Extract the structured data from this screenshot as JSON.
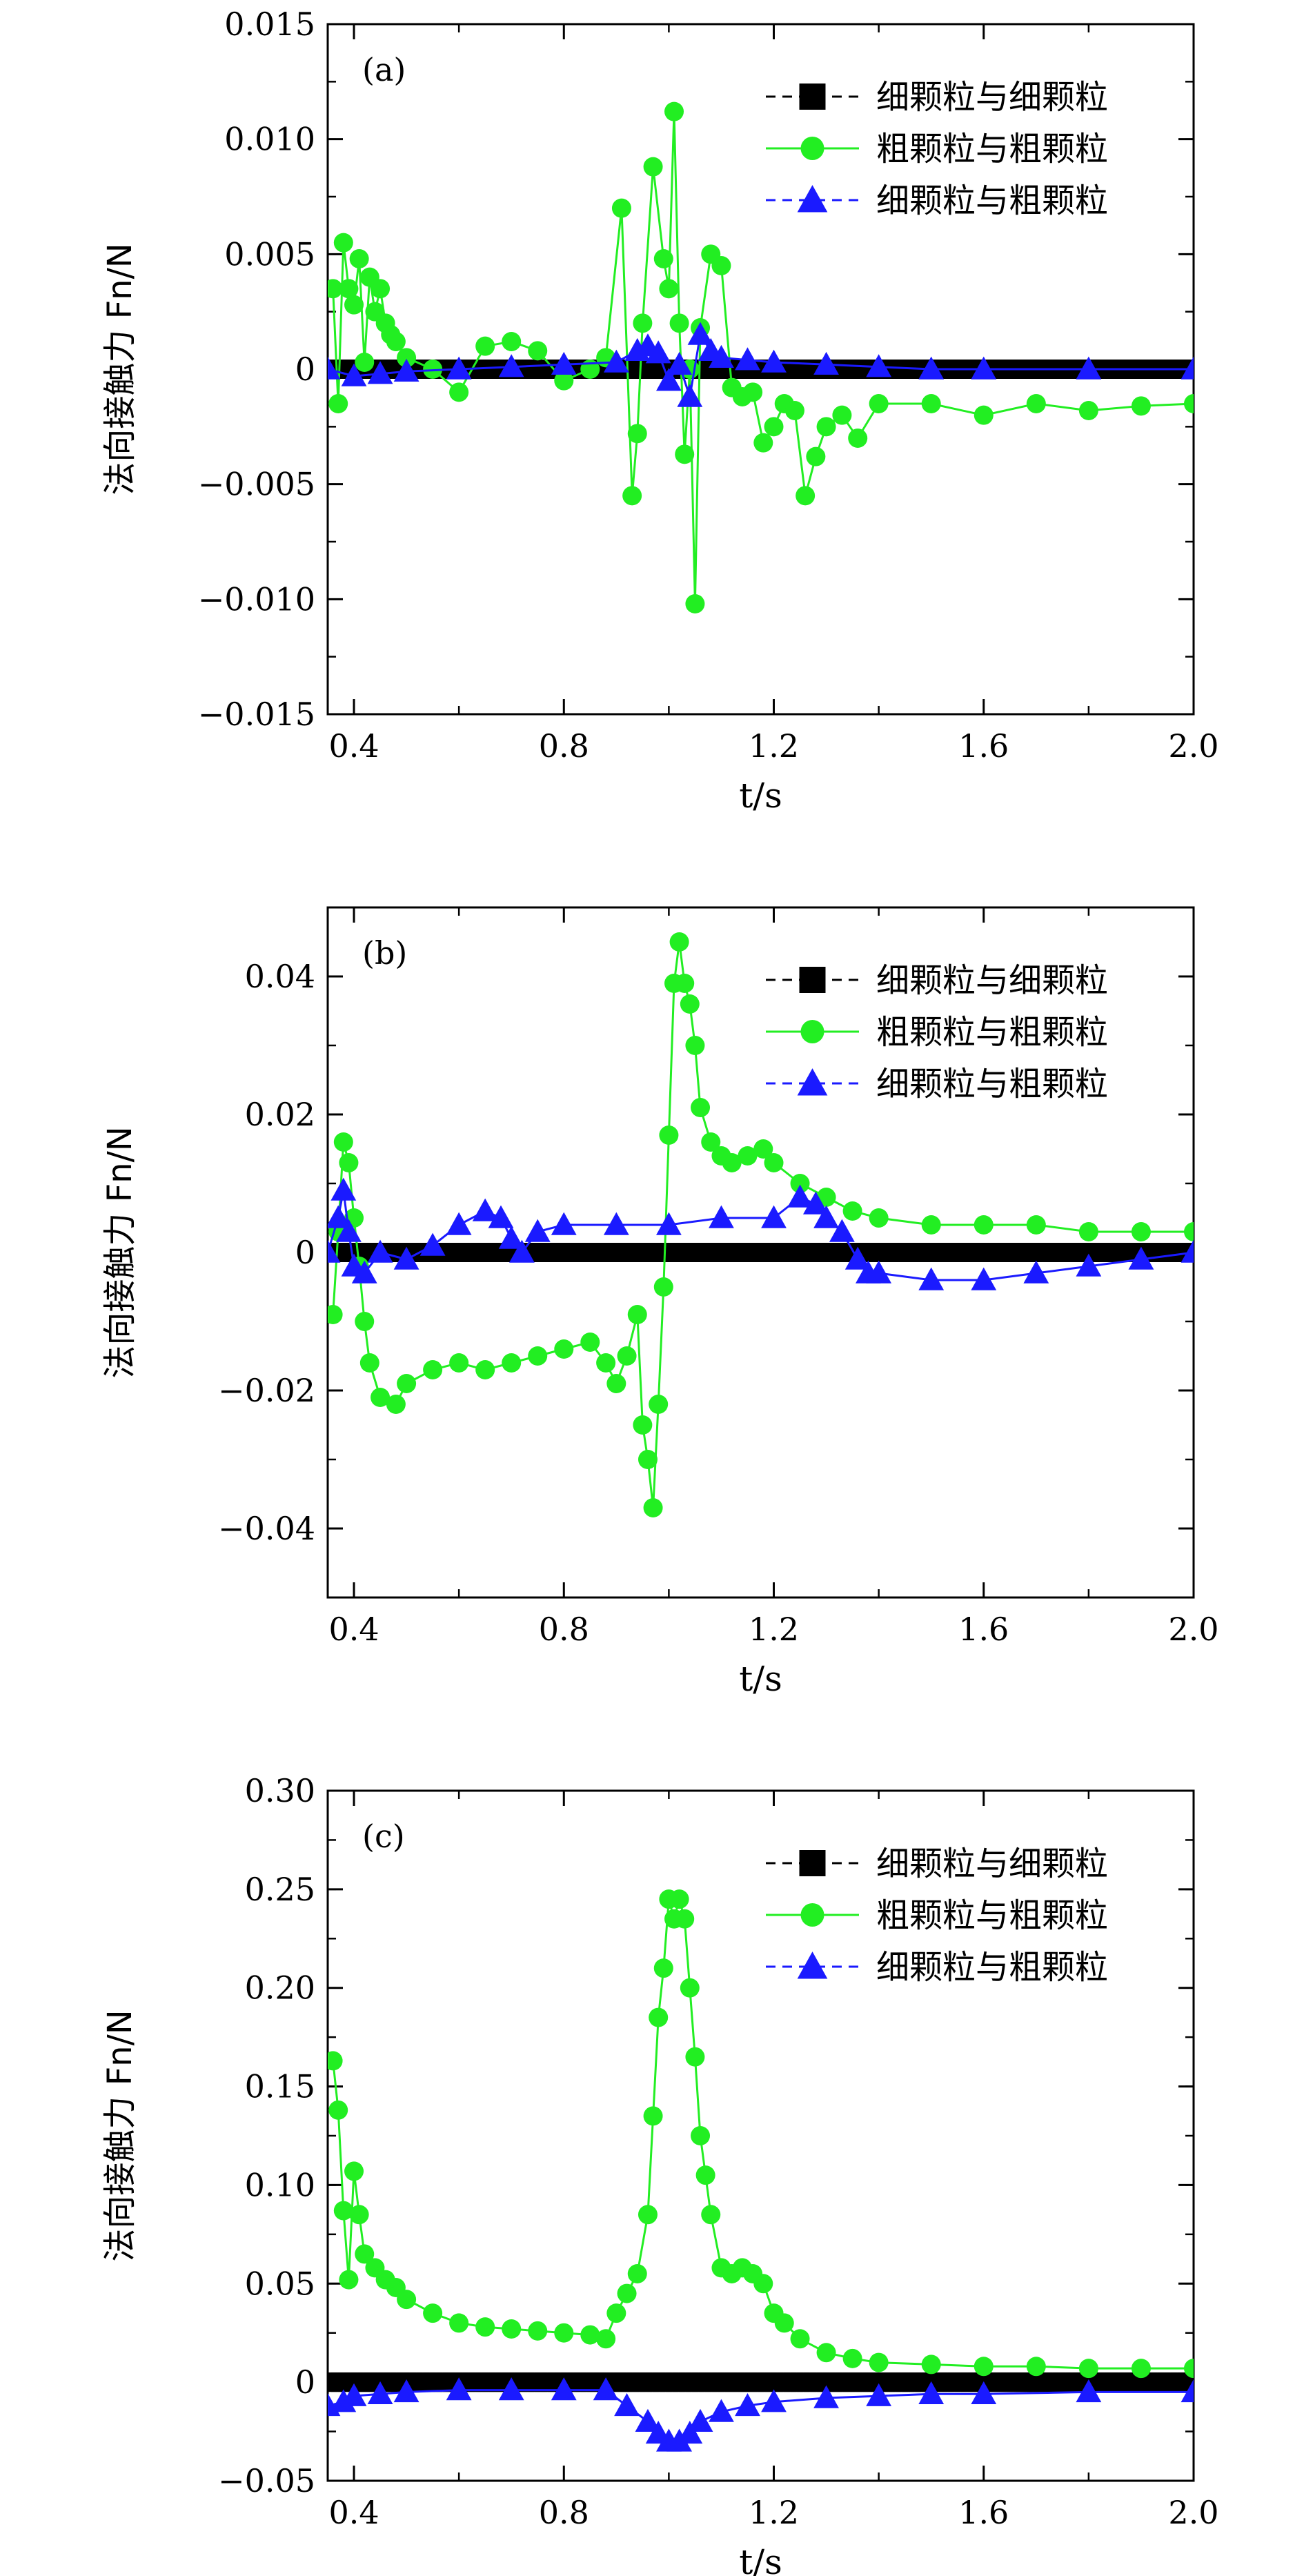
{
  "chart_data": [
    {
      "type": "line",
      "panel_label": "(a)",
      "xlabel": "t/s",
      "ylabel": "法向接触力 Fn/N",
      "xlim": [
        0.35,
        2.0
      ],
      "ylim": [
        -0.015,
        0.015
      ],
      "xticks": [
        0.4,
        0.8,
        1.2,
        1.6,
        2.0
      ],
      "xtick_labels": [
        "0.4",
        "0.8",
        "1.2",
        "1.6",
        "2.0"
      ],
      "yticks": [
        -0.015,
        -0.01,
        -0.005,
        0,
        0.005,
        0.01,
        0.015
      ],
      "ytick_labels": [
        "−0.015",
        "−0.010",
        "−0.005",
        "0",
        "0.005",
        "0.010",
        "0.015"
      ],
      "legend_position": "top-right",
      "series": [
        {
          "name": "细颗粒与细颗粒",
          "color": "#000000",
          "marker": "square",
          "x": [
            0.35,
            0.5,
            0.7,
            0.9,
            1.1,
            1.3,
            1.5,
            1.7,
            2.0
          ],
          "y": [
            0,
            0,
            0,
            0,
            0,
            0,
            0,
            0,
            0
          ]
        },
        {
          "name": "粗颗粒与粗颗粒",
          "color": "#22ee22",
          "marker": "circle",
          "x": [
            0.36,
            0.37,
            0.38,
            0.39,
            0.4,
            0.41,
            0.42,
            0.43,
            0.44,
            0.45,
            0.46,
            0.47,
            0.48,
            0.5,
            0.55,
            0.6,
            0.65,
            0.7,
            0.75,
            0.8,
            0.85,
            0.88,
            0.91,
            0.93,
            0.94,
            0.95,
            0.97,
            0.99,
            1.0,
            1.01,
            1.02,
            1.03,
            1.04,
            1.05,
            1.06,
            1.08,
            1.1,
            1.12,
            1.14,
            1.16,
            1.18,
            1.2,
            1.22,
            1.24,
            1.26,
            1.28,
            1.3,
            1.33,
            1.36,
            1.4,
            1.5,
            1.6,
            1.7,
            1.8,
            1.9,
            2.0
          ],
          "y": [
            0.0035,
            -0.0015,
            0.0055,
            0.0035,
            0.0028,
            0.0048,
            0.0003,
            0.004,
            0.0025,
            0.0035,
            0.002,
            0.0015,
            0.0012,
            0.0005,
            0.0,
            -0.001,
            0.001,
            0.0012,
            0.0008,
            -0.0005,
            0.0,
            0.0005,
            0.007,
            -0.0055,
            -0.0028,
            0.002,
            0.0088,
            0.0048,
            0.0035,
            0.0112,
            0.002,
            -0.0037,
            0.0,
            -0.0102,
            0.0018,
            0.005,
            0.0045,
            -0.0008,
            -0.0012,
            -0.001,
            -0.0032,
            -0.0025,
            -0.0015,
            -0.0018,
            -0.0055,
            -0.0038,
            -0.0025,
            -0.002,
            -0.003,
            -0.0015,
            -0.0015,
            -0.002,
            -0.0015,
            -0.0018,
            -0.0016,
            -0.0015
          ]
        },
        {
          "name": "细颗粒与粗颗粒",
          "color": "#1a1aff",
          "marker": "triangle",
          "x": [
            0.35,
            0.4,
            0.45,
            0.5,
            0.6,
            0.7,
            0.8,
            0.9,
            0.94,
            0.96,
            0.98,
            1.0,
            1.02,
            1.04,
            1.06,
            1.08,
            1.1,
            1.15,
            1.2,
            1.3,
            1.4,
            1.5,
            1.6,
            1.8,
            2.0
          ],
          "y": [
            0.0,
            -0.0003,
            -0.0002,
            -0.0001,
            0.0,
            0.0001,
            0.0002,
            0.0003,
            0.0008,
            0.001,
            0.0007,
            -0.0005,
            0.0002,
            -0.0012,
            0.0015,
            0.0008,
            0.0005,
            0.0004,
            0.0003,
            0.0002,
            0.0001,
            0.0,
            0.0,
            0.0,
            0.0
          ]
        }
      ]
    },
    {
      "type": "line",
      "panel_label": "(b)",
      "xlabel": "t/s",
      "ylabel": "法向接触力 Fn/N",
      "xlim": [
        0.35,
        2.0
      ],
      "ylim": [
        -0.05,
        0.05
      ],
      "xticks": [
        0.4,
        0.8,
        1.2,
        1.6,
        2.0
      ],
      "xtick_labels": [
        "0.4",
        "0.8",
        "1.2",
        "1.6",
        "2.0"
      ],
      "yticks": [
        -0.04,
        -0.02,
        0,
        0.02,
        0.04
      ],
      "ytick_labels": [
        "−0.04",
        "−0.02",
        "0",
        "0.02",
        "0.04"
      ],
      "legend_position": "top-right",
      "series": [
        {
          "name": "细颗粒与细颗粒",
          "color": "#000000",
          "marker": "square",
          "x": [
            0.35,
            0.5,
            0.7,
            0.9,
            1.1,
            1.3,
            1.5,
            1.7,
            2.0
          ],
          "y": [
            0,
            0,
            0,
            0,
            0,
            0,
            0,
            0,
            0
          ]
        },
        {
          "name": "粗颗粒与粗颗粒",
          "color": "#22ee22",
          "marker": "circle",
          "x": [
            0.36,
            0.37,
            0.38,
            0.39,
            0.4,
            0.41,
            0.42,
            0.43,
            0.45,
            0.48,
            0.5,
            0.55,
            0.6,
            0.65,
            0.7,
            0.75,
            0.8,
            0.85,
            0.88,
            0.9,
            0.92,
            0.94,
            0.95,
            0.96,
            0.97,
            0.98,
            0.99,
            1.0,
            1.01,
            1.02,
            1.03,
            1.04,
            1.05,
            1.06,
            1.08,
            1.1,
            1.12,
            1.15,
            1.18,
            1.2,
            1.25,
            1.3,
            1.35,
            1.4,
            1.5,
            1.6,
            1.7,
            1.8,
            1.9,
            2.0
          ],
          "y": [
            -0.009,
            0.003,
            0.016,
            0.013,
            0.005,
            -0.002,
            -0.01,
            -0.016,
            -0.021,
            -0.022,
            -0.019,
            -0.017,
            -0.016,
            -0.017,
            -0.016,
            -0.015,
            -0.014,
            -0.013,
            -0.016,
            -0.019,
            -0.015,
            -0.009,
            -0.025,
            -0.03,
            -0.037,
            -0.022,
            -0.005,
            0.017,
            0.039,
            0.045,
            0.039,
            0.036,
            0.03,
            0.021,
            0.016,
            0.014,
            0.013,
            0.014,
            0.015,
            0.013,
            0.01,
            0.008,
            0.006,
            0.005,
            0.004,
            0.004,
            0.004,
            0.003,
            0.003,
            0.003
          ]
        },
        {
          "name": "细颗粒与粗颗粒",
          "color": "#1a1aff",
          "marker": "triangle",
          "x": [
            0.35,
            0.37,
            0.38,
            0.39,
            0.4,
            0.42,
            0.45,
            0.5,
            0.55,
            0.6,
            0.65,
            0.68,
            0.7,
            0.72,
            0.75,
            0.8,
            0.9,
            1.0,
            1.1,
            1.2,
            1.25,
            1.28,
            1.3,
            1.33,
            1.36,
            1.38,
            1.4,
            1.5,
            1.6,
            1.7,
            1.8,
            1.9,
            2.0
          ],
          "y": [
            0.0,
            0.005,
            0.009,
            0.003,
            -0.002,
            -0.003,
            0.0,
            -0.001,
            0.001,
            0.004,
            0.006,
            0.005,
            0.002,
            0.0,
            0.003,
            0.004,
            0.004,
            0.004,
            0.005,
            0.005,
            0.008,
            0.007,
            0.005,
            0.003,
            -0.001,
            -0.003,
            -0.003,
            -0.004,
            -0.004,
            -0.003,
            -0.002,
            -0.001,
            0.0
          ]
        }
      ]
    },
    {
      "type": "line",
      "panel_label": "(c)",
      "xlabel": "t/s",
      "ylabel": "法向接触力 Fn/N",
      "xlim": [
        0.35,
        2.0
      ],
      "ylim": [
        -0.05,
        0.3
      ],
      "xticks": [
        0.4,
        0.8,
        1.2,
        1.6,
        2.0
      ],
      "xtick_labels": [
        "0.4",
        "0.8",
        "1.2",
        "1.6",
        "2.0"
      ],
      "yticks": [
        -0.05,
        0,
        0.05,
        0.1,
        0.15,
        0.2,
        0.25,
        0.3
      ],
      "ytick_labels": [
        "−0.05",
        "0",
        "0.05",
        "0.10",
        "0.15",
        "0.20",
        "0.25",
        "0.30"
      ],
      "legend_position": "top-right",
      "series": [
        {
          "name": "细颗粒与细颗粒",
          "color": "#000000",
          "marker": "square",
          "x": [
            0.35,
            0.5,
            0.7,
            0.9,
            1.1,
            1.3,
            1.5,
            1.7,
            2.0
          ],
          "y": [
            0,
            0,
            0,
            0,
            0,
            0,
            0,
            0,
            0
          ]
        },
        {
          "name": "粗颗粒与粗颗粒",
          "color": "#22ee22",
          "marker": "circle",
          "x": [
            0.36,
            0.37,
            0.38,
            0.39,
            0.4,
            0.41,
            0.42,
            0.44,
            0.46,
            0.48,
            0.5,
            0.55,
            0.6,
            0.65,
            0.7,
            0.75,
            0.8,
            0.85,
            0.88,
            0.9,
            0.92,
            0.94,
            0.96,
            0.97,
            0.98,
            0.99,
            1.0,
            1.01,
            1.02,
            1.03,
            1.04,
            1.05,
            1.06,
            1.07,
            1.08,
            1.1,
            1.12,
            1.14,
            1.16,
            1.18,
            1.2,
            1.22,
            1.25,
            1.3,
            1.35,
            1.4,
            1.5,
            1.6,
            1.7,
            1.8,
            1.9,
            2.0
          ],
          "y": [
            0.163,
            0.138,
            0.087,
            0.052,
            0.107,
            0.085,
            0.065,
            0.058,
            0.052,
            0.048,
            0.042,
            0.035,
            0.03,
            0.028,
            0.027,
            0.026,
            0.025,
            0.024,
            0.022,
            0.035,
            0.045,
            0.055,
            0.085,
            0.135,
            0.185,
            0.21,
            0.245,
            0.235,
            0.245,
            0.235,
            0.2,
            0.165,
            0.125,
            0.105,
            0.085,
            0.058,
            0.055,
            0.058,
            0.055,
            0.05,
            0.035,
            0.03,
            0.022,
            0.015,
            0.012,
            0.01,
            0.009,
            0.008,
            0.008,
            0.007,
            0.007,
            0.007
          ]
        },
        {
          "name": "细颗粒与粗颗粒",
          "color": "#1a1aff",
          "marker": "triangle",
          "x": [
            0.35,
            0.38,
            0.4,
            0.45,
            0.5,
            0.6,
            0.7,
            0.8,
            0.88,
            0.92,
            0.96,
            0.98,
            1.0,
            1.02,
            1.04,
            1.06,
            1.1,
            1.15,
            1.2,
            1.3,
            1.4,
            1.5,
            1.6,
            1.8,
            2.0
          ],
          "y": [
            -0.012,
            -0.01,
            -0.007,
            -0.006,
            -0.005,
            -0.004,
            -0.004,
            -0.004,
            -0.004,
            -0.012,
            -0.02,
            -0.026,
            -0.03,
            -0.03,
            -0.026,
            -0.02,
            -0.015,
            -0.012,
            -0.01,
            -0.008,
            -0.007,
            -0.006,
            -0.006,
            -0.005,
            -0.005
          ]
        }
      ]
    }
  ]
}
